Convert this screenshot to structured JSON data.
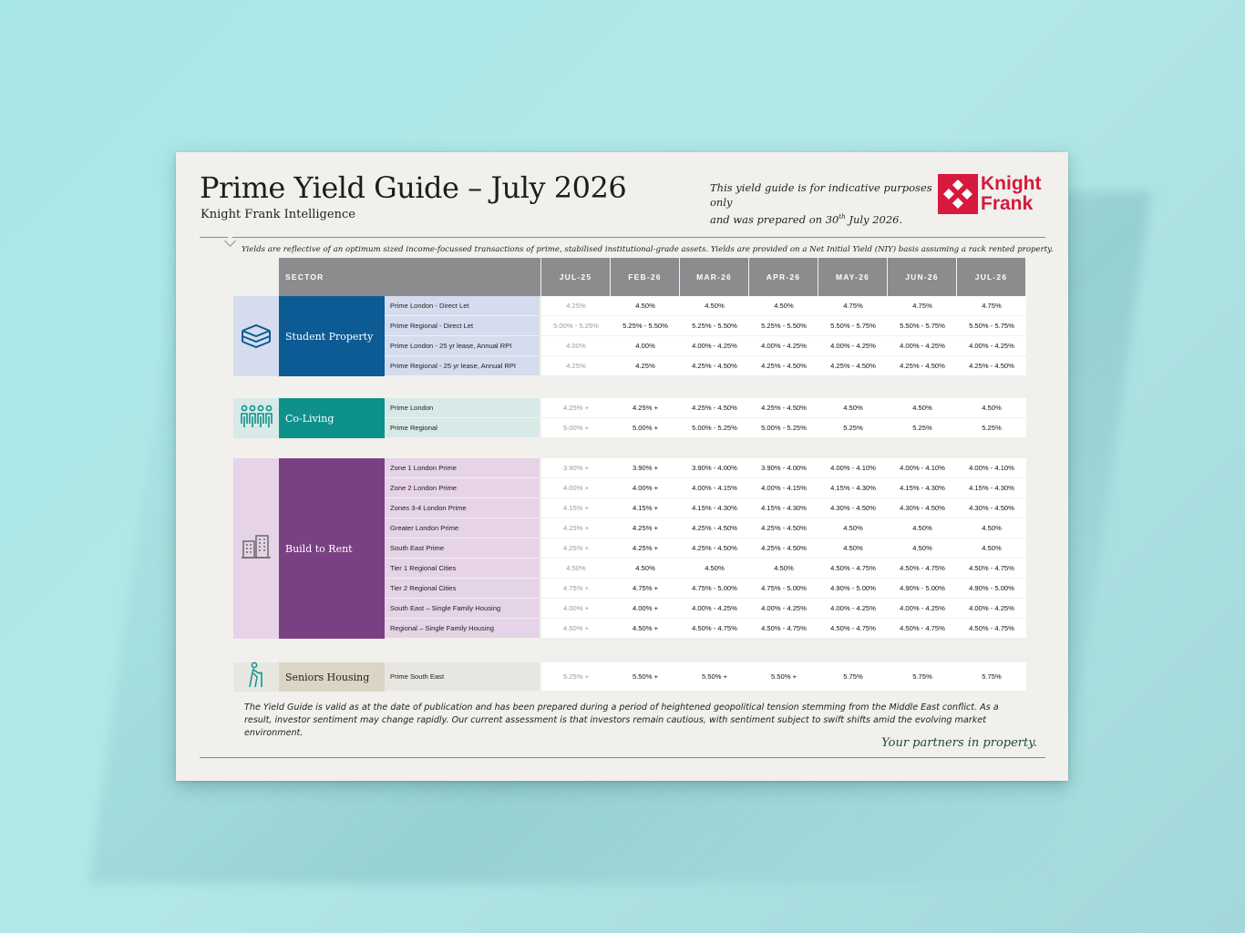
{
  "doc": {
    "title": "Prime Yield Guide – July 2026",
    "subtitle": "Knight Frank Intelligence",
    "note_line1": "This yield guide is for indicative purposes only",
    "note_line2_pre": "and was prepared on 30",
    "note_line2_sup": "th",
    "note_line2_post": " July 2026.",
    "logo_line1": "Knight",
    "logo_line2": "Frank",
    "disclaimer": "Yields are reflective of an optimum sized income-focussed transactions of prime, stabilised institutional-grade assets. Yields are provided on a Net Initial Yield (NIY) basis assuming a rack rented property.",
    "footnote": "The Yield Guide is valid as at the date of publication and has been prepared during a period of heightened geopolitical tension stemming from the Middle East conflict. As a result, investor sentiment may change rapidly. Our current assessment is that investors remain cautious, with sentiment subject to swift shifts amid the evolving market environment.",
    "tagline": "Your partners in property."
  },
  "colors": {
    "brand_red": "#d6193c",
    "student_dark": "#0c5b95",
    "student_light": "#d4dcee",
    "coliving_dark": "#0f918b",
    "coliving_light": "#d7eae7",
    "btr_dark": "#7a4084",
    "btr_light": "#e6d3e7",
    "seniors_dark": "#dad5c4",
    "seniors_light": "#e7e6e1",
    "header_grey": "#8b8c8e"
  },
  "table": {
    "headers": [
      "SECTOR",
      "JUL-25",
      "FEB-26",
      "MAR-26",
      "APR-26",
      "MAY-26",
      "JUN-26",
      "JUL-26"
    ],
    "groups": [
      {
        "sector": "Student Property",
        "icon": "books-icon",
        "rows": [
          {
            "name": "Prime London - Direct Let",
            "values": [
              "4.25%",
              "4.50%",
              "4.50%",
              "4.50%",
              "4.75%",
              "4.75%",
              "4.75%"
            ]
          },
          {
            "name": "Prime Regional - Direct Let",
            "values": [
              "5.00% - 5.25%",
              "5.25% - 5.50%",
              "5.25% - 5.50%",
              "5.25% - 5.50%",
              "5.50% - 5.75%",
              "5.50% - 5.75%",
              "5.50% - 5.75%"
            ]
          },
          {
            "name": "Prime London - 25 yr lease, Annual RPI",
            "values": [
              "4.00%",
              "4.00%",
              "4.00% - 4.25%",
              "4.00% - 4.25%",
              "4.00% - 4.25%",
              "4.00% - 4.25%",
              "4.00% - 4.25%"
            ]
          },
          {
            "name": "Prime Regional - 25 yr lease, Annual RPI",
            "values": [
              "4.25%",
              "4.25%",
              "4.25% - 4.50%",
              "4.25% - 4.50%",
              "4.25% - 4.50%",
              "4.25% - 4.50%",
              "4.25% - 4.50%"
            ]
          }
        ]
      },
      {
        "sector": "Co-Living",
        "icon": "people-icon",
        "rows": [
          {
            "name": "Prime London",
            "values": [
              "4.25% +",
              "4.25% +",
              "4.25% - 4.50%",
              "4.25% - 4.50%",
              "4.50%",
              "4.50%",
              "4.50%"
            ]
          },
          {
            "name": "Prime Regional",
            "values": [
              "5.00% +",
              "5.00% +",
              "5.00% - 5.25%",
              "5.00% - 5.25%",
              "5.25%",
              "5.25%",
              "5.25%"
            ]
          }
        ]
      },
      {
        "sector": "Build to Rent",
        "icon": "buildings-icon",
        "rows": [
          {
            "name": "Zone 1 London Prime",
            "values": [
              "3.90% +",
              "3.90% +",
              "3.90% - 4.00%",
              "3.90% - 4.00%",
              "4.00% - 4.10%",
              "4.00% - 4.10%",
              "4.00% - 4.10%"
            ]
          },
          {
            "name": "Zone 2 London Prime",
            "values": [
              "4.00% +",
              "4.00% +",
              "4.00% - 4.15%",
              "4.00% - 4.15%",
              "4.15% - 4.30%",
              "4.15% - 4.30%",
              "4.15% - 4.30%"
            ]
          },
          {
            "name": "Zones 3-4 London Prime",
            "values": [
              "4.15% +",
              "4.15% +",
              "4.15% - 4.30%",
              "4.15% - 4.30%",
              "4.30% - 4.50%",
              "4.30% - 4.50%",
              "4.30% - 4.50%"
            ]
          },
          {
            "name": "Greater London Prime",
            "values": [
              "4.25% +",
              "4.25% +",
              "4.25% - 4.50%",
              "4.25% - 4.50%",
              "4.50%",
              "4.50%",
              "4.50%"
            ]
          },
          {
            "name": "South East Prime",
            "values": [
              "4.25% +",
              "4.25% +",
              "4.25% - 4.50%",
              "4.25% - 4.50%",
              "4.50%",
              "4.50%",
              "4.50%"
            ]
          },
          {
            "name": "Tier 1 Regional Cities",
            "values": [
              "4.50%",
              "4.50%",
              "4.50%",
              "4.50%",
              "4.50% - 4.75%",
              "4.50% - 4.75%",
              "4.50% - 4.75%"
            ]
          },
          {
            "name": "Tier 2 Regional Cities",
            "values": [
              "4.75% +",
              "4.75% +",
              "4.75% - 5.00%",
              "4.75% - 5.00%",
              "4.90% - 5.00%",
              "4.90% - 5.00%",
              "4.90% - 5.00%"
            ]
          },
          {
            "name": "South East – Single Family Housing",
            "values": [
              "4.00% +",
              "4.00% +",
              "4.00% - 4.25%",
              "4.00% - 4.25%",
              "4.00% - 4.25%",
              "4.00% - 4.25%",
              "4.00% - 4.25%"
            ]
          },
          {
            "name": "Regional – Single Family Housing",
            "values": [
              "4.50% +",
              "4.50% +",
              "4.50% - 4.75%",
              "4.50% - 4.75%",
              "4.50% - 4.75%",
              "4.50% - 4.75%",
              "4.50% - 4.75%"
            ]
          }
        ]
      },
      {
        "sector": "Seniors Housing",
        "icon": "elderly-person-icon",
        "rows": [
          {
            "name": "Prime South East",
            "values": [
              "5.25% +",
              "5.50% +",
              "5.50% +",
              "5.50% +",
              "5.75%",
              "5.75%",
              "5.75%"
            ]
          }
        ]
      }
    ]
  }
}
